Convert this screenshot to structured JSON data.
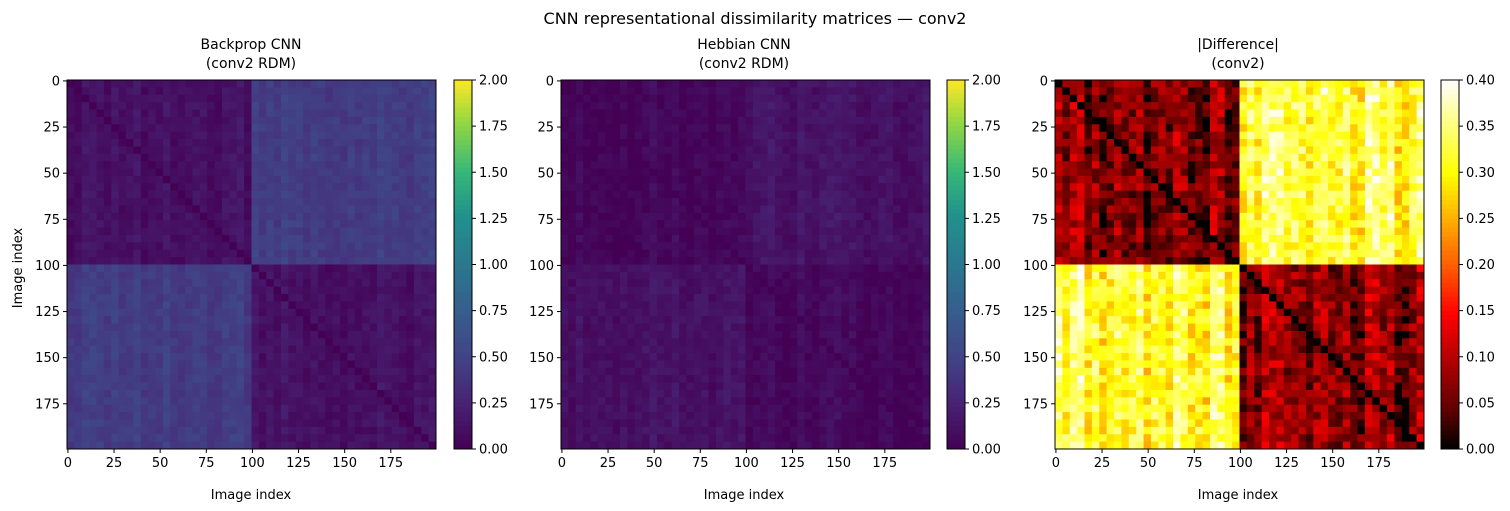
{
  "figure": {
    "suptitle": "CNN representational dissimilarity matrices — conv2"
  },
  "chart_data": [
    {
      "type": "heatmap",
      "title_line1": "Backprop CNN",
      "title_line2": "(conv2 RDM)",
      "xlabel": "Image index",
      "ylabel": "Image index",
      "n": 200,
      "x_ticks": [
        0,
        25,
        50,
        75,
        100,
        125,
        150,
        175
      ],
      "y_ticks": [
        0,
        25,
        50,
        75,
        100,
        125,
        150,
        175
      ],
      "colormap": "viridis",
      "colorbar_range": [
        0,
        2
      ],
      "colorbar_ticks": [
        "0.00",
        "0.25",
        "0.50",
        "0.75",
        "1.00",
        "1.25",
        "1.50",
        "1.75",
        "2.00"
      ],
      "block_boundary": 100,
      "approx_values": {
        "diagonal": 0.0,
        "within_block": 0.12,
        "between_blocks": 0.45
      }
    },
    {
      "type": "heatmap",
      "title_line1": "Hebbian CNN",
      "title_line2": "(conv2 RDM)",
      "xlabel": "Image index",
      "ylabel": "",
      "n": 200,
      "x_ticks": [
        0,
        25,
        50,
        75,
        100,
        125,
        150,
        175
      ],
      "y_ticks": [
        0,
        25,
        50,
        75,
        100,
        125,
        150,
        175
      ],
      "colormap": "viridis",
      "colorbar_range": [
        0,
        2
      ],
      "colorbar_ticks": [
        "0.00",
        "0.25",
        "0.50",
        "0.75",
        "1.00",
        "1.25",
        "1.50",
        "1.75",
        "2.00"
      ],
      "block_boundary": 100,
      "approx_values": {
        "diagonal": 0.0,
        "within_block": 0.05,
        "between_blocks": 0.13
      }
    },
    {
      "type": "heatmap",
      "title_line1": "|Difference|",
      "title_line2": "(conv2)",
      "xlabel": "Image index",
      "ylabel": "",
      "n": 200,
      "x_ticks": [
        0,
        25,
        50,
        75,
        100,
        125,
        150,
        175
      ],
      "y_ticks": [
        0,
        25,
        50,
        75,
        100,
        125,
        150,
        175
      ],
      "colormap": "hot",
      "colorbar_range": [
        0,
        0.4
      ],
      "colorbar_ticks": [
        "0.00",
        "0.05",
        "0.10",
        "0.15",
        "0.20",
        "0.25",
        "0.30",
        "0.35",
        "0.40"
      ],
      "block_boundary": 100,
      "approx_values": {
        "diagonal": 0.0,
        "within_block": 0.07,
        "between_blocks": 0.32
      }
    }
  ]
}
